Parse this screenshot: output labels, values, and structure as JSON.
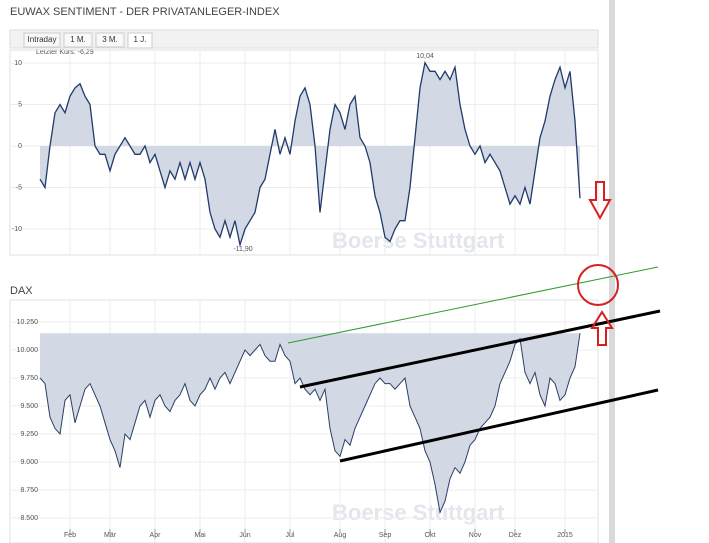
{
  "header": {
    "title": "EUWAX SENTIMENT - DER PRIVATANLEGER-INDEX"
  },
  "tabs": [
    "Intraday",
    "1 M.",
    "3 M.",
    "1 J."
  ],
  "watermark": "Boerse Stuttgart",
  "chart_data": [
    {
      "type": "line",
      "color": "#1f3a6b",
      "fill": "#d3d9e4",
      "annotations": [
        "Letzter Kurs: -6,29",
        "10,04",
        "-11,90"
      ],
      "ylim": [
        -12,
        11
      ],
      "yticks": [
        10,
        5,
        0,
        -5,
        -10
      ],
      "grid": true,
      "values": [
        -4,
        -5,
        0,
        4,
        5,
        4,
        6,
        7,
        7.5,
        6,
        5,
        0,
        -1,
        -1,
        -3,
        -1,
        0,
        1,
        0,
        -1,
        -1,
        0,
        -2,
        -1,
        -3,
        -5,
        -3,
        -4,
        -2,
        -4,
        -2,
        -4,
        -2,
        -4,
        -8,
        -10,
        -11,
        -9,
        -11,
        -9,
        -11.9,
        -10,
        -9,
        -8,
        -5,
        -4,
        -1,
        2,
        -1,
        1,
        -1,
        3,
        6,
        7,
        5,
        0,
        -8,
        -3,
        2,
        5,
        4,
        2,
        5,
        6,
        1,
        0,
        -2,
        -6,
        -8,
        -11,
        -11.5,
        -10,
        -9,
        -9,
        -5,
        1,
        7,
        10.04,
        9,
        9,
        8,
        9,
        8,
        9.5,
        5,
        2,
        0,
        -1,
        0,
        -2,
        -1,
        -2,
        -3,
        -5,
        -7,
        -6,
        -7,
        -5,
        -7,
        -3,
        1,
        3,
        6,
        8,
        9.5,
        7,
        9,
        3,
        -6.29
      ]
    },
    {
      "type": "area",
      "title": "DAX",
      "color": "#2a3f66",
      "fill": "#d3d9e4",
      "ylim": [
        8400,
        10350
      ],
      "yticks": [
        {
          "value": 10250,
          "label": "10.250"
        },
        {
          "value": 10000,
          "label": "10.000"
        },
        {
          "value": 9750,
          "label": "9.750"
        },
        {
          "value": 9500,
          "label": "9.500"
        },
        {
          "value": 9250,
          "label": "9.250"
        },
        {
          "value": 9000,
          "label": "9.000"
        },
        {
          "value": 8750,
          "label": "8.750"
        },
        {
          "value": 8500,
          "label": "8.500"
        }
      ],
      "grid": true,
      "categories": [
        null,
        null,
        null,
        null,
        null,
        null,
        "Feb",
        null,
        null,
        null,
        null,
        null,
        null,
        null,
        "Mär",
        null,
        null,
        null,
        null,
        null,
        null,
        null,
        null,
        "Apr",
        null,
        null,
        null,
        null,
        null,
        null,
        null,
        null,
        "Mai",
        null,
        null,
        null,
        null,
        null,
        null,
        null,
        null,
        "Jun",
        null,
        null,
        null,
        null,
        null,
        null,
        null,
        null,
        "Jul",
        null,
        null,
        null,
        null,
        null,
        null,
        null,
        null,
        null,
        "Aug",
        null,
        null,
        null,
        null,
        null,
        null,
        null,
        null,
        "Sep",
        null,
        null,
        null,
        null,
        null,
        null,
        null,
        null,
        "Okt",
        null,
        null,
        null,
        null,
        null,
        null,
        null,
        null,
        "Nov",
        null,
        null,
        null,
        null,
        null,
        null,
        null,
        "Dez",
        null,
        null,
        null,
        null,
        null,
        null,
        null,
        null,
        null,
        "2015",
        null,
        null,
        null
      ],
      "values": [
        9750,
        9700,
        9400,
        9300,
        9250,
        9550,
        9600,
        9350,
        9500,
        9650,
        9700,
        9600,
        9500,
        9350,
        9200,
        9100,
        8950,
        9250,
        9200,
        9350,
        9500,
        9550,
        9400,
        9550,
        9600,
        9500,
        9450,
        9550,
        9600,
        9700,
        9550,
        9500,
        9600,
        9650,
        9750,
        9650,
        9750,
        9800,
        9700,
        9800,
        9900,
        10000,
        9950,
        10000,
        10050,
        9950,
        9900,
        9900,
        10050,
        9950,
        9900,
        9700,
        9750,
        9650,
        9600,
        9650,
        9550,
        9650,
        9300,
        9100,
        9050,
        9200,
        9150,
        9300,
        9400,
        9500,
        9600,
        9700,
        9750,
        9700,
        9700,
        9650,
        9700,
        9750,
        9500,
        9400,
        9300,
        9100,
        9000,
        8800,
        8550,
        8650,
        8850,
        8950,
        8900,
        9000,
        9150,
        9200,
        9300,
        9350,
        9400,
        9500,
        9700,
        9800,
        9900,
        10050,
        10100,
        9800,
        9700,
        9800,
        9600,
        9500,
        9750,
        9700,
        9550,
        9600,
        9750,
        9850,
        10150
      ]
    }
  ]
}
